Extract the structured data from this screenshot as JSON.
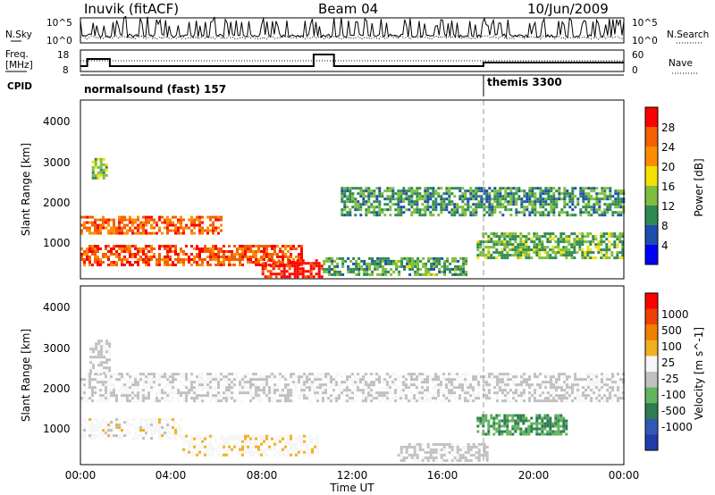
{
  "header": {
    "station": "Inuvik (fitACF)",
    "beam": "Beam 04",
    "date": "10/Jun/2009"
  },
  "noise_panel": {
    "left_label": "N.Sky",
    "right_label": "N.Search",
    "left_ticks": [
      "10^5",
      "10^0"
    ],
    "right_ticks": [
      "10^5",
      "10^0"
    ]
  },
  "freq_panel": {
    "left_label_1": "Freq.",
    "left_label_2": "[MHz]",
    "right_label": "Nave",
    "left_ticks": [
      "18",
      "8"
    ],
    "right_ticks": [
      "60",
      "0"
    ]
  },
  "cpid_panel": {
    "label": "CPID",
    "modes": [
      {
        "name": "normalsound (fast) 157",
        "start_hour": 0
      },
      {
        "name": "themis 3300",
        "start_hour": 18
      }
    ]
  },
  "x_axis": {
    "title": "Time UT",
    "ticks": [
      "00:00",
      "04:00",
      "08:00",
      "12:00",
      "16:00",
      "20:00",
      "00:00"
    ],
    "range_hours": [
      0,
      24
    ]
  },
  "y_axis": {
    "title": "Slant Range [km]",
    "ticks": [
      "1000",
      "2000",
      "3000",
      "4000"
    ],
    "range_km": [
      180,
      4500
    ]
  },
  "chart_data": [
    {
      "type": "heatmap",
      "title": "",
      "xlabel": "Time UT",
      "ylabel": "Slant Range [km]",
      "parameter": "Power",
      "colorbar_label": "Power [dB]",
      "colorbar_ticks": [
        "4",
        "8",
        "12",
        "16",
        "20",
        "24",
        "28"
      ],
      "colorbar_range": [
        0,
        30
      ],
      "colorbar_colors": [
        "#0000ff",
        "#1d4db0",
        "#2f8a52",
        "#7fbd3c",
        "#f4e000",
        "#ff8c00",
        "#f26000",
        "#ff0000"
      ],
      "xlim": [
        0,
        24
      ],
      "ylim": [
        180,
        4500
      ],
      "features": [
        {
          "label": "band",
          "t0": 0,
          "t1": 6.2,
          "r0": 1300,
          "r1": 1700,
          "value": 24
        },
        {
          "label": "band",
          "t0": 0,
          "t1": 9.8,
          "r0": 500,
          "r1": 1000,
          "value": 25
        },
        {
          "label": "band",
          "t0": 8,
          "t1": 10.7,
          "r0": 200,
          "r1": 650,
          "value": 29
        },
        {
          "label": "band",
          "t0": 0.5,
          "t1": 1.2,
          "r0": 2600,
          "r1": 3100,
          "value": 13
        },
        {
          "label": "band",
          "t0": 11.5,
          "t1": 24,
          "r0": 1700,
          "r1": 2400,
          "value": 10
        },
        {
          "label": "band",
          "t0": 17.5,
          "t1": 24,
          "r0": 700,
          "r1": 1300,
          "value": 12
        },
        {
          "label": "band",
          "t0": 10.7,
          "t1": 17,
          "r0": 300,
          "r1": 700,
          "value": 11
        }
      ]
    },
    {
      "type": "heatmap",
      "title": "",
      "xlabel": "Time UT",
      "ylabel": "Slant Range [km]",
      "parameter": "Velocity",
      "colorbar_label": "Velocity [m s^-1]",
      "colorbar_ticks": [
        "1000",
        "500",
        "100",
        "25",
        "-25",
        "-100",
        "-500",
        "-1000"
      ],
      "colorbar_range": [
        -1200,
        1200
      ],
      "colorbar_colors": [
        "#1f3dac",
        "#2f5ab0",
        "#2e7d50",
        "#63b45f",
        "#c0c0c0",
        "#f6f6f6",
        "#f0b020",
        "#f08000",
        "#f04000",
        "#ff0000"
      ],
      "xlim": [
        0,
        24
      ],
      "ylim": [
        180,
        4500
      ],
      "features": [
        {
          "label": "ground scatter",
          "t0": 0,
          "t1": 24,
          "r0": 1700,
          "r1": 2400,
          "value": 0
        },
        {
          "label": "ground scatter",
          "t0": 0.4,
          "t1": 1.3,
          "r0": 2400,
          "r1": 3200,
          "value": 0
        },
        {
          "label": "ionospheric",
          "t0": 0,
          "t1": 4.5,
          "r0": 800,
          "r1": 1300,
          "value": 120
        },
        {
          "label": "ionospheric",
          "t0": 4.5,
          "t1": 10.5,
          "r0": 400,
          "r1": 900,
          "value": 150
        },
        {
          "label": "ionospheric",
          "t0": 17.5,
          "t1": 21.5,
          "r0": 900,
          "r1": 1400,
          "value": -450
        },
        {
          "label": "ionospheric",
          "t0": 14,
          "t1": 18,
          "r0": 300,
          "r1": 700,
          "value": -80
        }
      ]
    }
  ]
}
